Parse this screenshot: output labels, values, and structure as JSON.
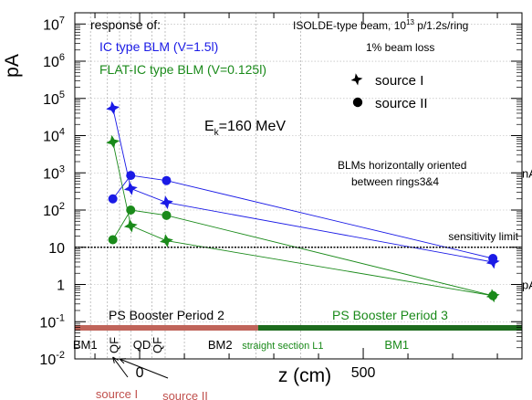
{
  "chart_data": {
    "type": "scatter",
    "y_scale": "log",
    "ylim": [
      0.01,
      20000000
    ],
    "xlim": [
      -145,
      855
    ],
    "x_ticks": [
      {
        "value": 0,
        "label": "0"
      },
      {
        "value": 500,
        "label": "500"
      }
    ],
    "y_ticks": [
      {
        "value": 0.01,
        "base": "10",
        "exp": "-2"
      },
      {
        "value": 0.1,
        "base": "10",
        "exp": "-1"
      },
      {
        "value": 1,
        "base": "1",
        "exp": ""
      },
      {
        "value": 10,
        "base": "10",
        "exp": ""
      },
      {
        "value": 100,
        "base": "10",
        "exp": "2"
      },
      {
        "value": 1000,
        "base": "10",
        "exp": "3"
      },
      {
        "value": 10000,
        "base": "10",
        "exp": "4"
      },
      {
        "value": 100000,
        "base": "10",
        "exp": "5"
      },
      {
        "value": 1000000,
        "base": "10",
        "exp": "6"
      },
      {
        "value": 10000000,
        "base": "10",
        "exp": "7"
      }
    ],
    "xlabel": "z (cm)",
    "ylabel": "pA",
    "right_labels": [
      {
        "text": "nA",
        "value": 1000
      },
      {
        "text": "pA",
        "value": 1
      }
    ],
    "grid": true,
    "series": [
      {
        "name": "IC type BLM (V=1.5l)",
        "source": "source I",
        "marker": "star",
        "color": "#1a1ae6",
        "x": [
          -60,
          -20,
          60,
          790
        ],
        "y": [
          55000,
          380,
          160,
          4
        ]
      },
      {
        "name": "IC type BLM (V=1.5l)",
        "source": "source II",
        "marker": "circle",
        "color": "#1a1ae6",
        "x": [
          -60,
          -20,
          60,
          790
        ],
        "y": [
          200,
          850,
          620,
          5
        ]
      },
      {
        "name": "FLAT-IC type BLM (V=0.125l)",
        "source": "source I",
        "marker": "star",
        "color": "#1a8a1a",
        "x": [
          -60,
          -20,
          60,
          790
        ],
        "y": [
          6800,
          38,
          15,
          0.5
        ]
      },
      {
        "name": "FLAT-IC type BLM (V=0.125l)",
        "source": "source II",
        "marker": "circle",
        "color": "#1a8a1a",
        "x": [
          -60,
          -20,
          60,
          790
        ],
        "y": [
          16,
          100,
          72,
          0.5
        ]
      }
    ],
    "sensitivity_limit": {
      "value": 10,
      "label": "sensitivity limit"
    },
    "vertical_dashed_x": [
      -110,
      -72,
      -45,
      -20,
      27,
      57,
      100,
      260,
      360
    ],
    "periods": [
      {
        "label": "PS Booster Period 2",
        "x_start": -145,
        "x_end": 265,
        "color": "#c0645a",
        "text_color": "#000000"
      },
      {
        "label": "PS Booster Period 3",
        "x_start": 265,
        "x_end": 855,
        "color": "#1d6b1d",
        "text_color": "#1a8a1a"
      }
    ],
    "elements": [
      {
        "label": "BM1",
        "x": -122,
        "rotated": false,
        "color": "#000000"
      },
      {
        "label": "QF",
        "x": -55,
        "rotated": true,
        "color": "#000000"
      },
      {
        "label": "QD",
        "x": 5,
        "rotated": false,
        "color": "#000000"
      },
      {
        "label": "QF",
        "x": 42,
        "rotated": true,
        "color": "#000000"
      },
      {
        "label": "BM2",
        "x": 180,
        "rotated": false,
        "color": "#000000"
      },
      {
        "label": "straight section L1",
        "x": 320,
        "rotated": false,
        "color": "#1a8a1a"
      },
      {
        "label": "BM1",
        "x": 575,
        "rotated": false,
        "color": "#1a8a1a"
      }
    ],
    "sources": [
      {
        "label": "source I",
        "x": -60
      },
      {
        "label": "source II",
        "x": -45
      }
    ]
  },
  "annotations": {
    "response_of": "response of:",
    "ic_type": "IC type BLM (V=1.5l)",
    "flat_ic_type": "FLAT-IC type BLM (V=0.125l)",
    "beam_text_pre": "ISOLDE-type beam, 10",
    "beam_text_exp": "13",
    "beam_text_post": " p/1.2s/ring",
    "beam_loss": "1% beam loss",
    "legend_source1": "source I",
    "legend_source2": "source II",
    "energy_pre": "E",
    "energy_sub": "k",
    "energy_post": "=160 MeV",
    "orientation_line1": "BLMs horizontally oriented",
    "orientation_line2": "between rings3&4"
  },
  "colors": {
    "blue": "#1a1ae6",
    "green": "#1a8a1a",
    "source_label": "#c0504d",
    "period2_bar": "#c0645a",
    "period3_bar": "#1d6b1d"
  }
}
